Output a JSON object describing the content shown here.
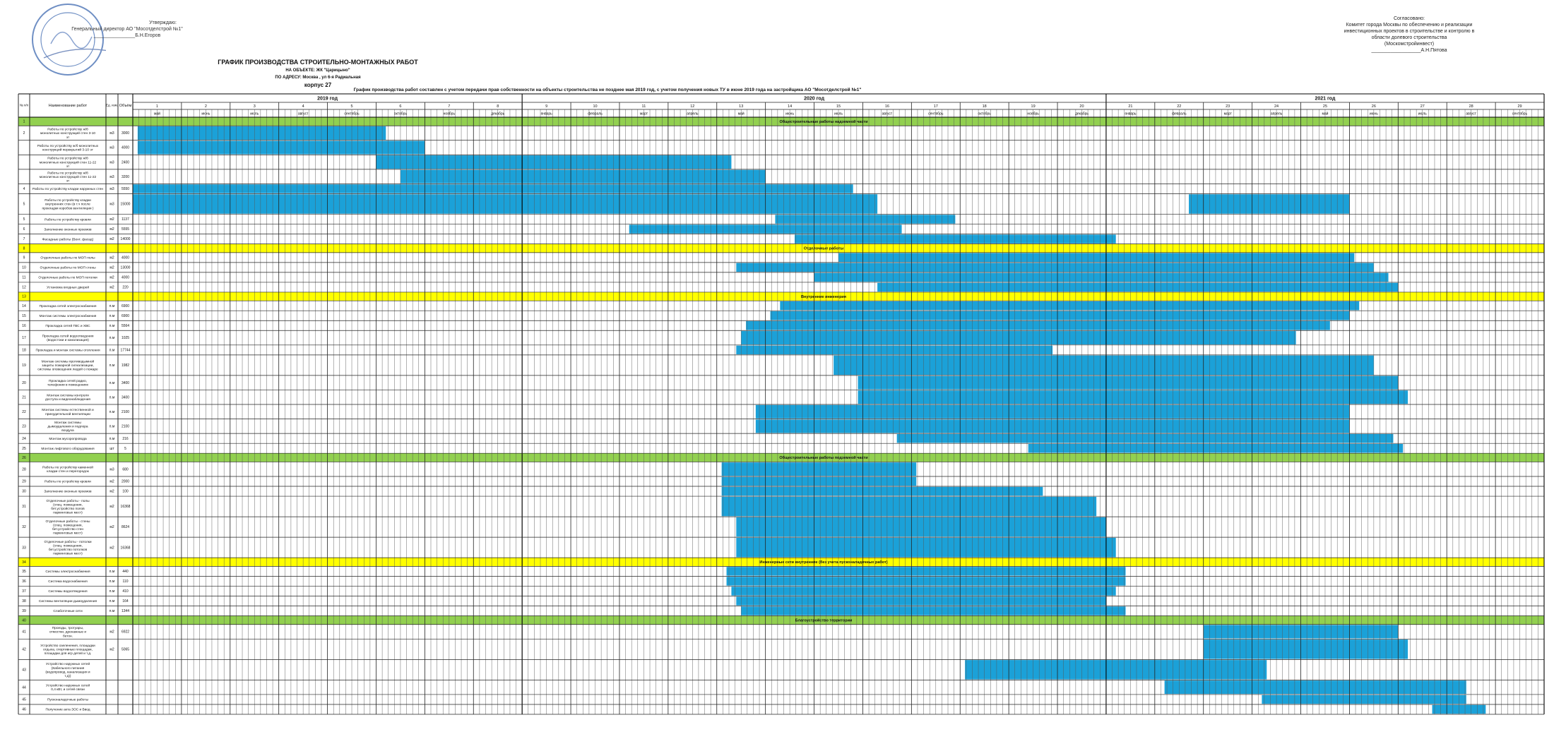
{
  "header": {
    "approve_left": [
      "Утверждаю:",
      "Генеральный директор АО \"Мосотделстрой №1\"",
      "_______________Б.Н.Егоров"
    ],
    "approve_right": [
      "Согласовано:",
      "Комитет города Москвы по обеспечению и реализации",
      "инвестиционных проектов в строительстве и контролю в",
      "области долевого строительства",
      "(Москомстройинвест)",
      "__________________А.Н.Пятова"
    ],
    "title": "ГРАФИК ПРОИЗВОДСТВА СТРОИТЕЛЬНО-МОНТАЖНЫХ РАБОТ",
    "object": "НА ОБЪЕКТЕ: ЖК \"Царицыно\"",
    "address": "ПО АДРЕСУ: Москва , ул 6-я Радиальная",
    "corpus": "корпус 27",
    "note": "График производства работ составлен с учетом передачи прав собственности на объекты строительства  не позднее мая 2019 год, с учетом получения новых  ТУ  в июне 2019 года на застройщика  АО \"Мосотделстрой №1\""
  },
  "columns": {
    "num": "№ п/п",
    "name": "Наименование работ",
    "unit": "Ед. изм.",
    "volume": "Объём"
  },
  "years": [
    {
      "label": "2019 год",
      "months": 8
    },
    {
      "label": "2020 год",
      "months": 12
    },
    {
      "label": "2021 год",
      "months": 9
    }
  ],
  "month_numbers": [
    "1",
    "2",
    "3",
    "4",
    "5",
    "6",
    "7",
    "8",
    "9",
    "10",
    "11",
    "12",
    "13",
    "14",
    "15",
    "16",
    "17",
    "18",
    "19",
    "20",
    "21",
    "22",
    "23",
    "24",
    "25",
    "26",
    "27",
    "28",
    "29"
  ],
  "month_names": [
    "май",
    "июнь",
    "июль",
    "август",
    "сентябрь",
    "октябрь",
    "ноябрь",
    "декабрь",
    "январь",
    "февраль",
    "март",
    "апрель",
    "май",
    "июнь",
    "июль",
    "август",
    "сентябрь",
    "октябрь",
    "ноябрь",
    "декабрь",
    "январь",
    "февраль",
    "март",
    "апрель",
    "май",
    "июнь",
    "июль",
    "август",
    "сентябрь"
  ],
  "colors": {
    "bar": "#1ba1d8",
    "bar_edge": "#0d7fb0",
    "section_green": "#92d050",
    "section_yellow": "#ffff00",
    "grid": "#333333"
  },
  "rows": [
    {
      "kind": "section",
      "color": "green",
      "num": "1",
      "label": "Общестроительные работы надземной части"
    },
    {
      "kind": "task",
      "num": "2",
      "name": "Работы по устройству ж/б монолитных конструкций стен 3-10 эт",
      "unit": "м3",
      "vol": "3000",
      "lines": 2,
      "bars": [
        [
          0.1,
          5.2
        ]
      ]
    },
    {
      "kind": "task",
      "num": "",
      "name": "Работы по устройству ж/б монолитных конструкций перекрытий 3-10 эт",
      "unit": "м3",
      "vol": "4000",
      "lines": 2,
      "bars": [
        [
          0.1,
          6.0
        ]
      ]
    },
    {
      "kind": "task",
      "num": "",
      "name": "Работы по устройству ж/б монолитных конструкций стен 11-22 эт",
      "unit": "м3",
      "vol": "2400",
      "lines": 2,
      "bars": [
        [
          5.0,
          12.3
        ]
      ]
    },
    {
      "kind": "task",
      "num": "",
      "name": "Работы по устройству ж/б монолитных конструкций стен 11-22 эт",
      "unit": "м3",
      "vol": "3200",
      "lines": 2,
      "bars": [
        [
          5.5,
          13.0
        ]
      ]
    },
    {
      "kind": "task",
      "num": "4",
      "name": "Работы по устройству кладки наружных стен",
      "unit": "м3",
      "vol": "5550",
      "lines": 1,
      "bars": [
        [
          0,
          14.8
        ]
      ]
    },
    {
      "kind": "task",
      "num": "5",
      "name": "Работы по устройству кладки внутренних стен (в т.ч после прокладки коробов вентиляции )",
      "unit": "м3",
      "vol": "15000",
      "lines": 3,
      "bars": [
        [
          0,
          15.3
        ],
        [
          21.7,
          25.0
        ]
      ]
    },
    {
      "kind": "task",
      "num": "5",
      "name": "Работы по устройству кровли",
      "unit": "м2",
      "vol": "1137",
      "lines": 1,
      "bars": [
        [
          13.2,
          16.9
        ]
      ]
    },
    {
      "kind": "task",
      "num": "6",
      "name": "Заполнение оконных проемов",
      "unit": "м2",
      "vol": "5555",
      "lines": 1,
      "bars": [
        [
          10.2,
          15.8
        ]
      ]
    },
    {
      "kind": "task",
      "num": "7",
      "name": "Фасадные работы (Вент. фасад)",
      "unit": "м2",
      "vol": "14000",
      "lines": 1,
      "bars": [
        [
          13.6,
          20.2
        ]
      ]
    },
    {
      "kind": "section",
      "color": "yellow",
      "num": "8",
      "label": "Отделочные работы"
    },
    {
      "kind": "task",
      "num": "9",
      "name": "Отделочные работы по МОП полы",
      "unit": "м2",
      "vol": "4000",
      "lines": 1,
      "bars": [
        [
          14.5,
          25.1
        ]
      ]
    },
    {
      "kind": "task",
      "num": "10",
      "name": "Отделочные работы по МОП стены",
      "unit": "м2",
      "vol": "13000",
      "lines": 1,
      "bars": [
        [
          12.4,
          25.5
        ]
      ]
    },
    {
      "kind": "task",
      "num": "11",
      "name": "Отделочные работы по МОП потолки",
      "unit": "м2",
      "vol": "4000",
      "lines": 1,
      "bars": [
        [
          14.0,
          25.8
        ]
      ]
    },
    {
      "kind": "task",
      "num": "12",
      "name": "Установка входных дверей",
      "unit": "м2",
      "vol": "220",
      "lines": 1,
      "bars": [
        [
          15.3,
          26.0
        ]
      ]
    },
    {
      "kind": "section",
      "color": "yellow",
      "num": "13",
      "label": "Внутренние инженерия"
    },
    {
      "kind": "task",
      "num": "14",
      "name": "Прокладка сетей электроснабжения",
      "unit": "п.м",
      "vol": "6900",
      "lines": 1,
      "bars": [
        [
          13.3,
          25.2
        ]
      ]
    },
    {
      "kind": "task",
      "num": "15",
      "name": "Монтаж системы электроснабжения",
      "unit": "п.м",
      "vol": "6900",
      "lines": 1,
      "bars": [
        [
          13.1,
          25.0
        ]
      ]
    },
    {
      "kind": "task",
      "num": "16",
      "name": "Прокладка сетей ГВС и ХВС",
      "unit": "п.м",
      "vol": "5564",
      "lines": 1,
      "bars": [
        [
          12.6,
          24.6
        ]
      ]
    },
    {
      "kind": "task",
      "num": "17",
      "name": "Прокладка сетей водоотведения (водостоки и канализация)",
      "unit": "п.м",
      "vol": "1025",
      "lines": 2,
      "bars": [
        [
          12.5,
          23.9
        ]
      ]
    },
    {
      "kind": "task",
      "num": "18",
      "name": "Прокладка и монтаж системы отопления",
      "unit": "п.м",
      "vol": "17744",
      "lines": 1,
      "bars": [
        [
          12.4,
          18.9
        ]
      ]
    },
    {
      "kind": "task",
      "num": "19",
      "name": "Монтаж системы противодымной защиты пожарной сигнализации, системы оповещения людей о пожаре",
      "unit": "п.м",
      "vol": "1982",
      "lines": 3,
      "bars": [
        [
          14.4,
          25.5
        ]
      ]
    },
    {
      "kind": "task",
      "num": "20",
      "name": "Прокладка сетей радио, телефонии в помещениях",
      "unit": "п.м",
      "vol": "3400",
      "lines": 2,
      "bars": [
        [
          14.9,
          26.0
        ]
      ]
    },
    {
      "kind": "task",
      "num": "21",
      "name": "Монтаж системы контроля доступа и видеонаблюдения",
      "unit": "п.м",
      "vol": "3400",
      "lines": 2,
      "bars": [
        [
          14.9,
          26.2
        ]
      ]
    },
    {
      "kind": "task",
      "num": "22",
      "name": "Монтаж системы естественной и принудительной вентиляции",
      "unit": "п.м",
      "vol": "2100",
      "lines": 2,
      "bars": [
        [
          12.8,
          25.0
        ]
      ]
    },
    {
      "kind": "task",
      "num": "23",
      "name": "Монтаж системы дымоудаления и подпора воздуха",
      "unit": "п.м",
      "vol": "2100",
      "lines": 2,
      "bars": [
        [
          12.8,
          25.0
        ]
      ]
    },
    {
      "kind": "task",
      "num": "24",
      "name": "Монтаж мусоропровода",
      "unit": "п.м",
      "vol": "216",
      "lines": 1,
      "bars": [
        [
          15.7,
          25.9
        ]
      ]
    },
    {
      "kind": "task",
      "num": "25",
      "name": "Монтаж лифтового оборудования",
      "unit": "шт",
      "vol": "5",
      "lines": 1,
      "bars": [
        [
          18.4,
          26.1
        ]
      ]
    },
    {
      "kind": "section",
      "color": "green",
      "num": "26",
      "label": "Общестроительные работы подземной части"
    },
    {
      "kind": "task",
      "num": "28",
      "name": "Работы по устройству каменной кладки стен и перегородок",
      "unit": "м3",
      "vol": "680",
      "lines": 2,
      "bars": [
        [
          12.1,
          16.1
        ]
      ]
    },
    {
      "kind": "task",
      "num": "29",
      "name": "Работы по устройству кровли",
      "unit": "м2",
      "vol": "2000",
      "lines": 1,
      "bars": [
        [
          12.1,
          16.1
        ]
      ]
    },
    {
      "kind": "task",
      "num": "30",
      "name": "Заполнение оконных проемов",
      "unit": "м2",
      "vol": "100",
      "lines": 1,
      "bars": [
        [
          12.1,
          18.7
        ]
      ]
    },
    {
      "kind": "task",
      "num": "31",
      "name": "Отделочные работы - полы (спец. помещения, бет.устройство полов паркинговых мест)",
      "unit": "м2",
      "vol": "16368",
      "lines": 3,
      "bars": [
        [
          12.1,
          19.8
        ]
      ]
    },
    {
      "kind": "task",
      "num": "32",
      "name": "Отделочные работы - стены (спец. помещения, бет.устройство стен паркинговых мест)",
      "unit": "м2",
      "vol": "8624",
      "lines": 3,
      "bars": [
        [
          12.4,
          20.0
        ]
      ]
    },
    {
      "kind": "task",
      "num": "33",
      "name": "Отделочные работы - потолки (спец. помещения, бет.устройство потолков паркинговых мест)",
      "unit": "м2",
      "vol": "16368",
      "lines": 3,
      "bars": [
        [
          12.4,
          20.2
        ]
      ]
    },
    {
      "kind": "section",
      "color": "yellow",
      "num": "34",
      "label": "Инженерные сети внутренние (без учета пусконаладочных работ)"
    },
    {
      "kind": "task",
      "num": "35",
      "name": "Системы электроснабжения",
      "unit": "п.м",
      "vol": "440",
      "lines": 1,
      "bars": [
        [
          12.2,
          20.4
        ]
      ]
    },
    {
      "kind": "task",
      "num": "36",
      "name": "Система водоснабжения",
      "unit": "п.м",
      "vol": "110",
      "lines": 1,
      "bars": [
        [
          12.2,
          20.4
        ]
      ]
    },
    {
      "kind": "task",
      "num": "37",
      "name": "Системы водоотведения",
      "unit": "п.м",
      "vol": "410",
      "lines": 1,
      "bars": [
        [
          12.3,
          20.2
        ]
      ]
    },
    {
      "kind": "task",
      "num": "38",
      "name": "Системы вентиляции дымоудаления",
      "unit": "п.м",
      "vol": "164",
      "lines": 1,
      "bars": [
        [
          12.4,
          20.0
        ]
      ]
    },
    {
      "kind": "task",
      "num": "39",
      "name": "Слаботочные сети",
      "unit": "п.м",
      "vol": "1344",
      "lines": 1,
      "bars": [
        [
          12.5,
          20.4
        ]
      ]
    },
    {
      "kind": "section",
      "color": "green",
      "num": "40",
      "label": "Благоустройство территории"
    },
    {
      "kind": "task",
      "num": "41",
      "name": "Проезды, тротуары, отмостки, дренажные и бетон.",
      "unit": "м2",
      "vol": "6922",
      "lines": 2,
      "bars": [
        [
          22.0,
          26.0
        ]
      ]
    },
    {
      "kind": "task",
      "num": "42",
      "name": "Устройство озеленения, площадки отдыха, спортивные площадки, площадки для игр детей и т.д.",
      "unit": "м2",
      "vol": "5065",
      "lines": 3,
      "bars": [
        [
          22.0,
          26.2
        ]
      ]
    },
    {
      "kind": "task",
      "num": "43",
      "name": "Устройство наружных сетей (Кабельного питания (водопровод, канализация и т.д))",
      "unit": "",
      "vol": "",
      "lines": 3,
      "bars": [
        [
          17.1,
          23.3
        ]
      ]
    },
    {
      "kind": "task",
      "num": "44",
      "name": "Устройство наружных сетей 0,4 кВт, и сетей связи",
      "unit": "",
      "vol": "",
      "lines": 2,
      "bars": [
        [
          21.2,
          27.4
        ]
      ]
    },
    {
      "kind": "task",
      "num": "45",
      "name": "Пусконаладочные работы",
      "unit": "",
      "vol": "",
      "lines": 1,
      "bars": [
        [
          23.2,
          27.4
        ]
      ]
    },
    {
      "kind": "task",
      "num": "46",
      "name": "Получение акта ЗОС и Ввод",
      "unit": "",
      "vol": "",
      "lines": 1,
      "bars": [
        [
          26.7,
          27.8
        ]
      ]
    }
  ]
}
